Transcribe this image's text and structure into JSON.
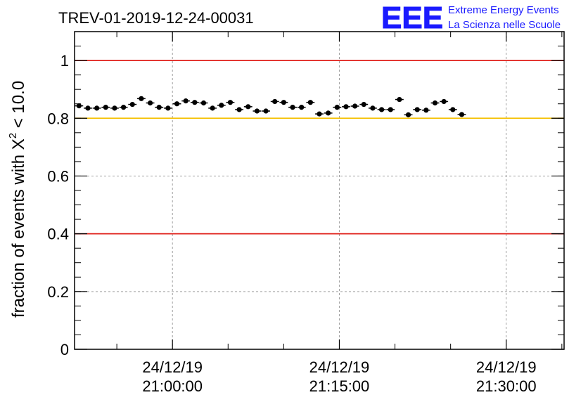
{
  "logo": {
    "mark": "EEE",
    "line1": "Extreme Energy Events",
    "line2": "La Scienza nelle Scuole",
    "color": "#1a1aff"
  },
  "chart_data": {
    "type": "scatter",
    "title": "TREV-01-2019-12-24-00031",
    "ylabel_prefix": "fraction of events with ",
    "ylabel_symbol": "Χ",
    "ylabel_exp": "2",
    "ylabel_suffix": " < 10.0",
    "ylim": [
      0,
      1.1
    ],
    "yticks": [
      {
        "value": 0,
        "label": "0"
      },
      {
        "value": 0.2,
        "label": "0.2"
      },
      {
        "value": 0.4,
        "label": "0.4"
      },
      {
        "value": 0.6,
        "label": "0.6"
      },
      {
        "value": 0.8,
        "label": "0.8"
      },
      {
        "value": 1,
        "label": "1"
      }
    ],
    "xlim_minutes": [
      -8.8,
      35.2
    ],
    "xticks": [
      {
        "minutes": 0,
        "date": "24/12/19",
        "time": "21:00:00"
      },
      {
        "minutes": 15,
        "date": "24/12/19",
        "time": "21:15:00"
      },
      {
        "minutes": 30,
        "date": "24/12/19",
        "time": "21:30:00"
      }
    ],
    "grid": true,
    "reference_lines": [
      {
        "value": 1.0,
        "color": "#e0201a"
      },
      {
        "value": 0.8,
        "color": "#f5c000"
      },
      {
        "value": 0.4,
        "color": "#e0201a"
      }
    ],
    "bin_width_minutes": 0.75,
    "points": [
      {
        "x": -8.4,
        "y": 0.843
      },
      {
        "x": -7.6,
        "y": 0.835
      },
      {
        "x": -6.8,
        "y": 0.835
      },
      {
        "x": -6.0,
        "y": 0.838
      },
      {
        "x": -5.2,
        "y": 0.835
      },
      {
        "x": -4.4,
        "y": 0.838
      },
      {
        "x": -3.6,
        "y": 0.848
      },
      {
        "x": -2.8,
        "y": 0.868
      },
      {
        "x": -2.0,
        "y": 0.853
      },
      {
        "x": -1.2,
        "y": 0.838
      },
      {
        "x": -0.4,
        "y": 0.835
      },
      {
        "x": 0.4,
        "y": 0.85
      },
      {
        "x": 1.2,
        "y": 0.86
      },
      {
        "x": 2.0,
        "y": 0.855
      },
      {
        "x": 2.8,
        "y": 0.853
      },
      {
        "x": 3.6,
        "y": 0.835
      },
      {
        "x": 4.4,
        "y": 0.845
      },
      {
        "x": 5.2,
        "y": 0.855
      },
      {
        "x": 6.0,
        "y": 0.83
      },
      {
        "x": 6.8,
        "y": 0.84
      },
      {
        "x": 7.6,
        "y": 0.825
      },
      {
        "x": 8.4,
        "y": 0.825
      },
      {
        "x": 9.2,
        "y": 0.858
      },
      {
        "x": 10.0,
        "y": 0.855
      },
      {
        "x": 10.8,
        "y": 0.838
      },
      {
        "x": 11.6,
        "y": 0.838
      },
      {
        "x": 12.4,
        "y": 0.855
      },
      {
        "x": 13.2,
        "y": 0.815
      },
      {
        "x": 14.0,
        "y": 0.818
      },
      {
        "x": 14.8,
        "y": 0.838
      },
      {
        "x": 15.6,
        "y": 0.84
      },
      {
        "x": 16.4,
        "y": 0.842
      },
      {
        "x": 17.2,
        "y": 0.848
      },
      {
        "x": 18.0,
        "y": 0.835
      },
      {
        "x": 18.8,
        "y": 0.83
      },
      {
        "x": 19.6,
        "y": 0.83
      },
      {
        "x": 20.4,
        "y": 0.865
      },
      {
        "x": 21.2,
        "y": 0.812
      },
      {
        "x": 22.0,
        "y": 0.83
      },
      {
        "x": 22.8,
        "y": 0.828
      },
      {
        "x": 23.6,
        "y": 0.853
      },
      {
        "x": 24.4,
        "y": 0.858
      },
      {
        "x": 25.2,
        "y": 0.83
      },
      {
        "x": 26.0,
        "y": 0.813
      }
    ]
  }
}
